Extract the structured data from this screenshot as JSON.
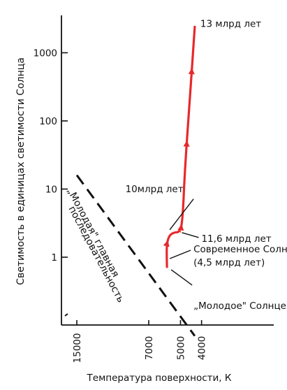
{
  "chart_data": {
    "type": "line",
    "title": "",
    "xlabel": "Температура поверхности, К",
    "ylabel": "Светимость в единицах светимости Солнца",
    "x_scale": "log",
    "x_reversed": true,
    "y_scale": "log",
    "x_ticks": [
      15000,
      7000,
      5000,
      4000
    ],
    "y_ticks": [
      {
        "value": 1,
        "label": "1"
      },
      {
        "value": 10,
        "label": "10"
      },
      {
        "value": 100,
        "label": "100"
      },
      {
        "value": 1000,
        "label": "1000"
      }
    ],
    "grid": false,
    "legend": "none",
    "main_sequence": {
      "label": "„Молодая\" главная последовательность",
      "points": [
        [
          15000,
          16
        ],
        [
          4300,
          0.07
        ]
      ],
      "style": "dashed",
      "color": "#111111"
    },
    "series": [
      {
        "color": "#e8282b",
        "points": [
          [
            5770,
            0.72
          ],
          [
            5790,
            1.1
          ],
          [
            5780,
            1.55
          ],
          [
            5650,
            2.05
          ],
          [
            5400,
            2.3
          ],
          [
            5000,
            2.35
          ],
          [
            4880,
            4
          ],
          [
            4780,
            18
          ],
          [
            4560,
            150
          ],
          [
            4300,
            2400
          ]
        ],
        "arrows_at_index": [
          2,
          5,
          7,
          8
        ]
      }
    ],
    "annotations": [
      {
        "text": "13 млрд  лет",
        "x": 4300,
        "y": 2400
      },
      {
        "text": "10млрд  лет",
        "x": 5750,
        "y": 1.8
      },
      {
        "text": "11,6 млрд  лет",
        "x": 5000,
        "y": 2.35
      },
      {
        "text": "Современное Солнце",
        "x": 5770,
        "y": 1.0
      },
      {
        "text": "(4,5 млрд  лет)",
        "x": 5770,
        "y": 1.0
      },
      {
        "text": "„Молодое\" Солнце",
        "x": 5770,
        "y": 0.72
      }
    ]
  }
}
